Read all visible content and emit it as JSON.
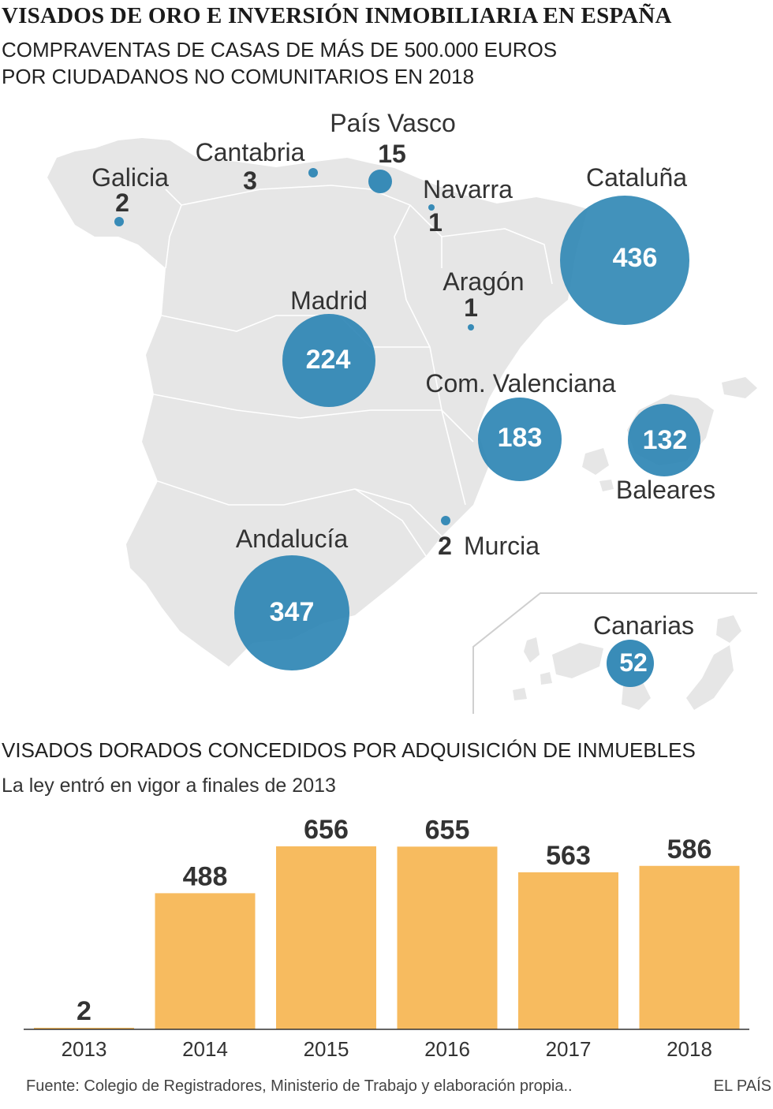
{
  "title": "VISADOS DE ORO E INVERSIÓN INMOBILIARIA EN ESPAÑA",
  "subtitle_line1": "COMPRAVENTAS DE CASAS DE MÁS DE 500.000 EUROS",
  "subtitle_line2": "POR CIUDADANOS NO COMUNITARIOS EN 2018",
  "colors": {
    "bubble": "#2e86b4",
    "bar": "#f7bb5f",
    "land": "#e6e6e6",
    "border": "#ffffff"
  },
  "map": {
    "regions": [
      {
        "id": "galicia",
        "name": "Galicia",
        "value": 2
      },
      {
        "id": "cantabria",
        "name": "Cantabria",
        "value": 3
      },
      {
        "id": "pais-vasco",
        "name": "País Vasco",
        "value": 15
      },
      {
        "id": "navarra",
        "name": "Navarra",
        "value": 1
      },
      {
        "id": "cataluna",
        "name": "Cataluña",
        "value": 436
      },
      {
        "id": "aragon",
        "name": "Aragón",
        "value": 1
      },
      {
        "id": "madrid",
        "name": "Madrid",
        "value": 224
      },
      {
        "id": "valenciana",
        "name": "Com. Valenciana",
        "value": 183
      },
      {
        "id": "baleares",
        "name": "Baleares",
        "value": 132
      },
      {
        "id": "murcia",
        "name": "Murcia",
        "value": 2
      },
      {
        "id": "andalucia",
        "name": "Andalucía",
        "value": 347
      },
      {
        "id": "canarias",
        "name": "Canarias",
        "value": 52
      }
    ]
  },
  "bars_title": "VISADOS DORADOS CONCEDIDOS POR ADQUISICIÓN DE INMUEBLES",
  "bars_subtitle": "La ley entró en vigor a finales de 2013",
  "chart_data": {
    "type": "bar",
    "categories": [
      "2013",
      "2014",
      "2015",
      "2016",
      "2017",
      "2018"
    ],
    "values": [
      2,
      488,
      656,
      655,
      563,
      586
    ],
    "title": "VISADOS DORADOS CONCEDIDOS POR ADQUISICIÓN DE INMUEBLES",
    "subtitle": "La ley entró en vigor a finales de 2013",
    "xlabel": "",
    "ylabel": "",
    "ylim": [
      0,
      656
    ],
    "grid": false
  },
  "footer": "Fuente: Colegio de Registradores, Ministerio de Trabajo y elaboración propia..",
  "brand": "EL PAÍS"
}
